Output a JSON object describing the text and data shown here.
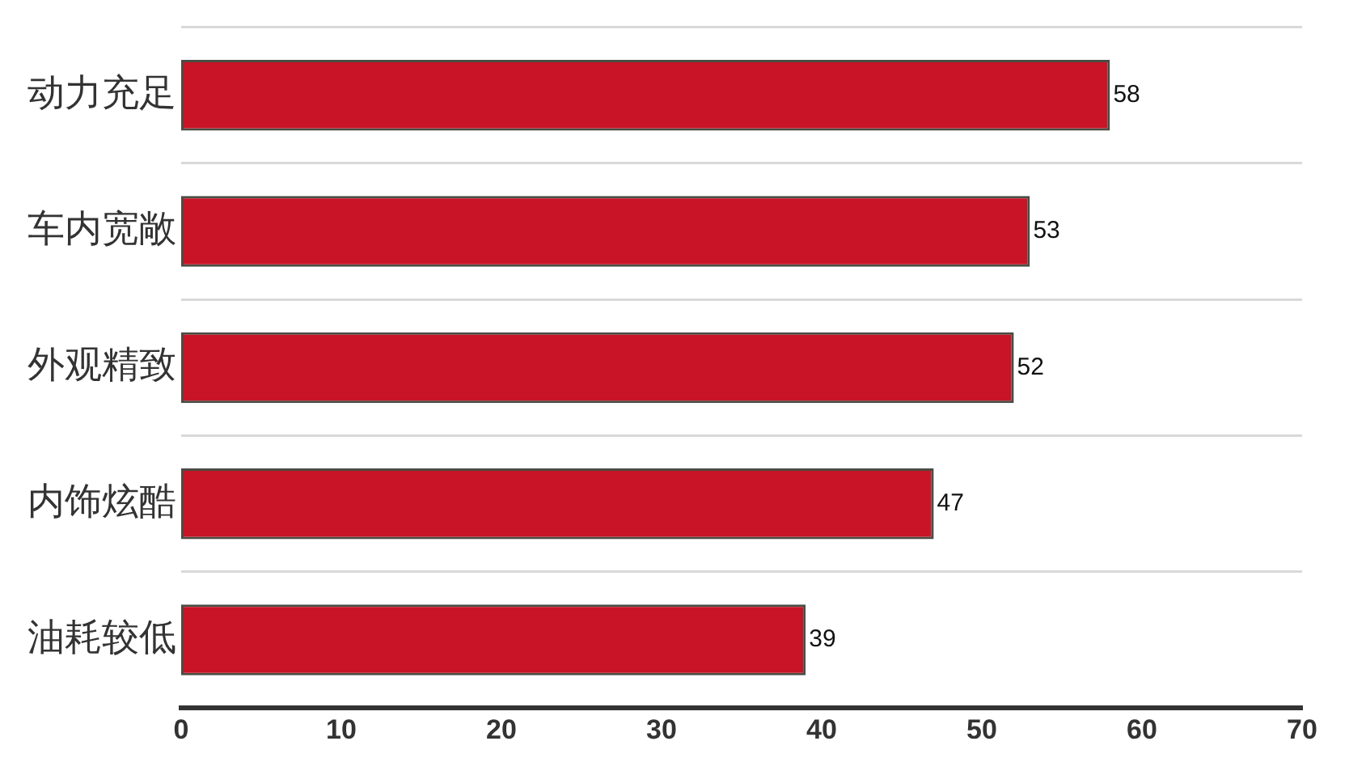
{
  "chart_data": {
    "type": "bar",
    "orientation": "horizontal",
    "categories": [
      "动力充足",
      "车内宽敞",
      "外观精致",
      "内饰炫酷",
      "油耗较低"
    ],
    "values": [
      58,
      53,
      52,
      47,
      39
    ],
    "color": "#c81426",
    "xlim": [
      0,
      70
    ],
    "xticks": [
      0,
      10,
      20,
      30,
      40,
      50,
      60,
      70
    ],
    "grid": "y",
    "data_labels": true
  }
}
